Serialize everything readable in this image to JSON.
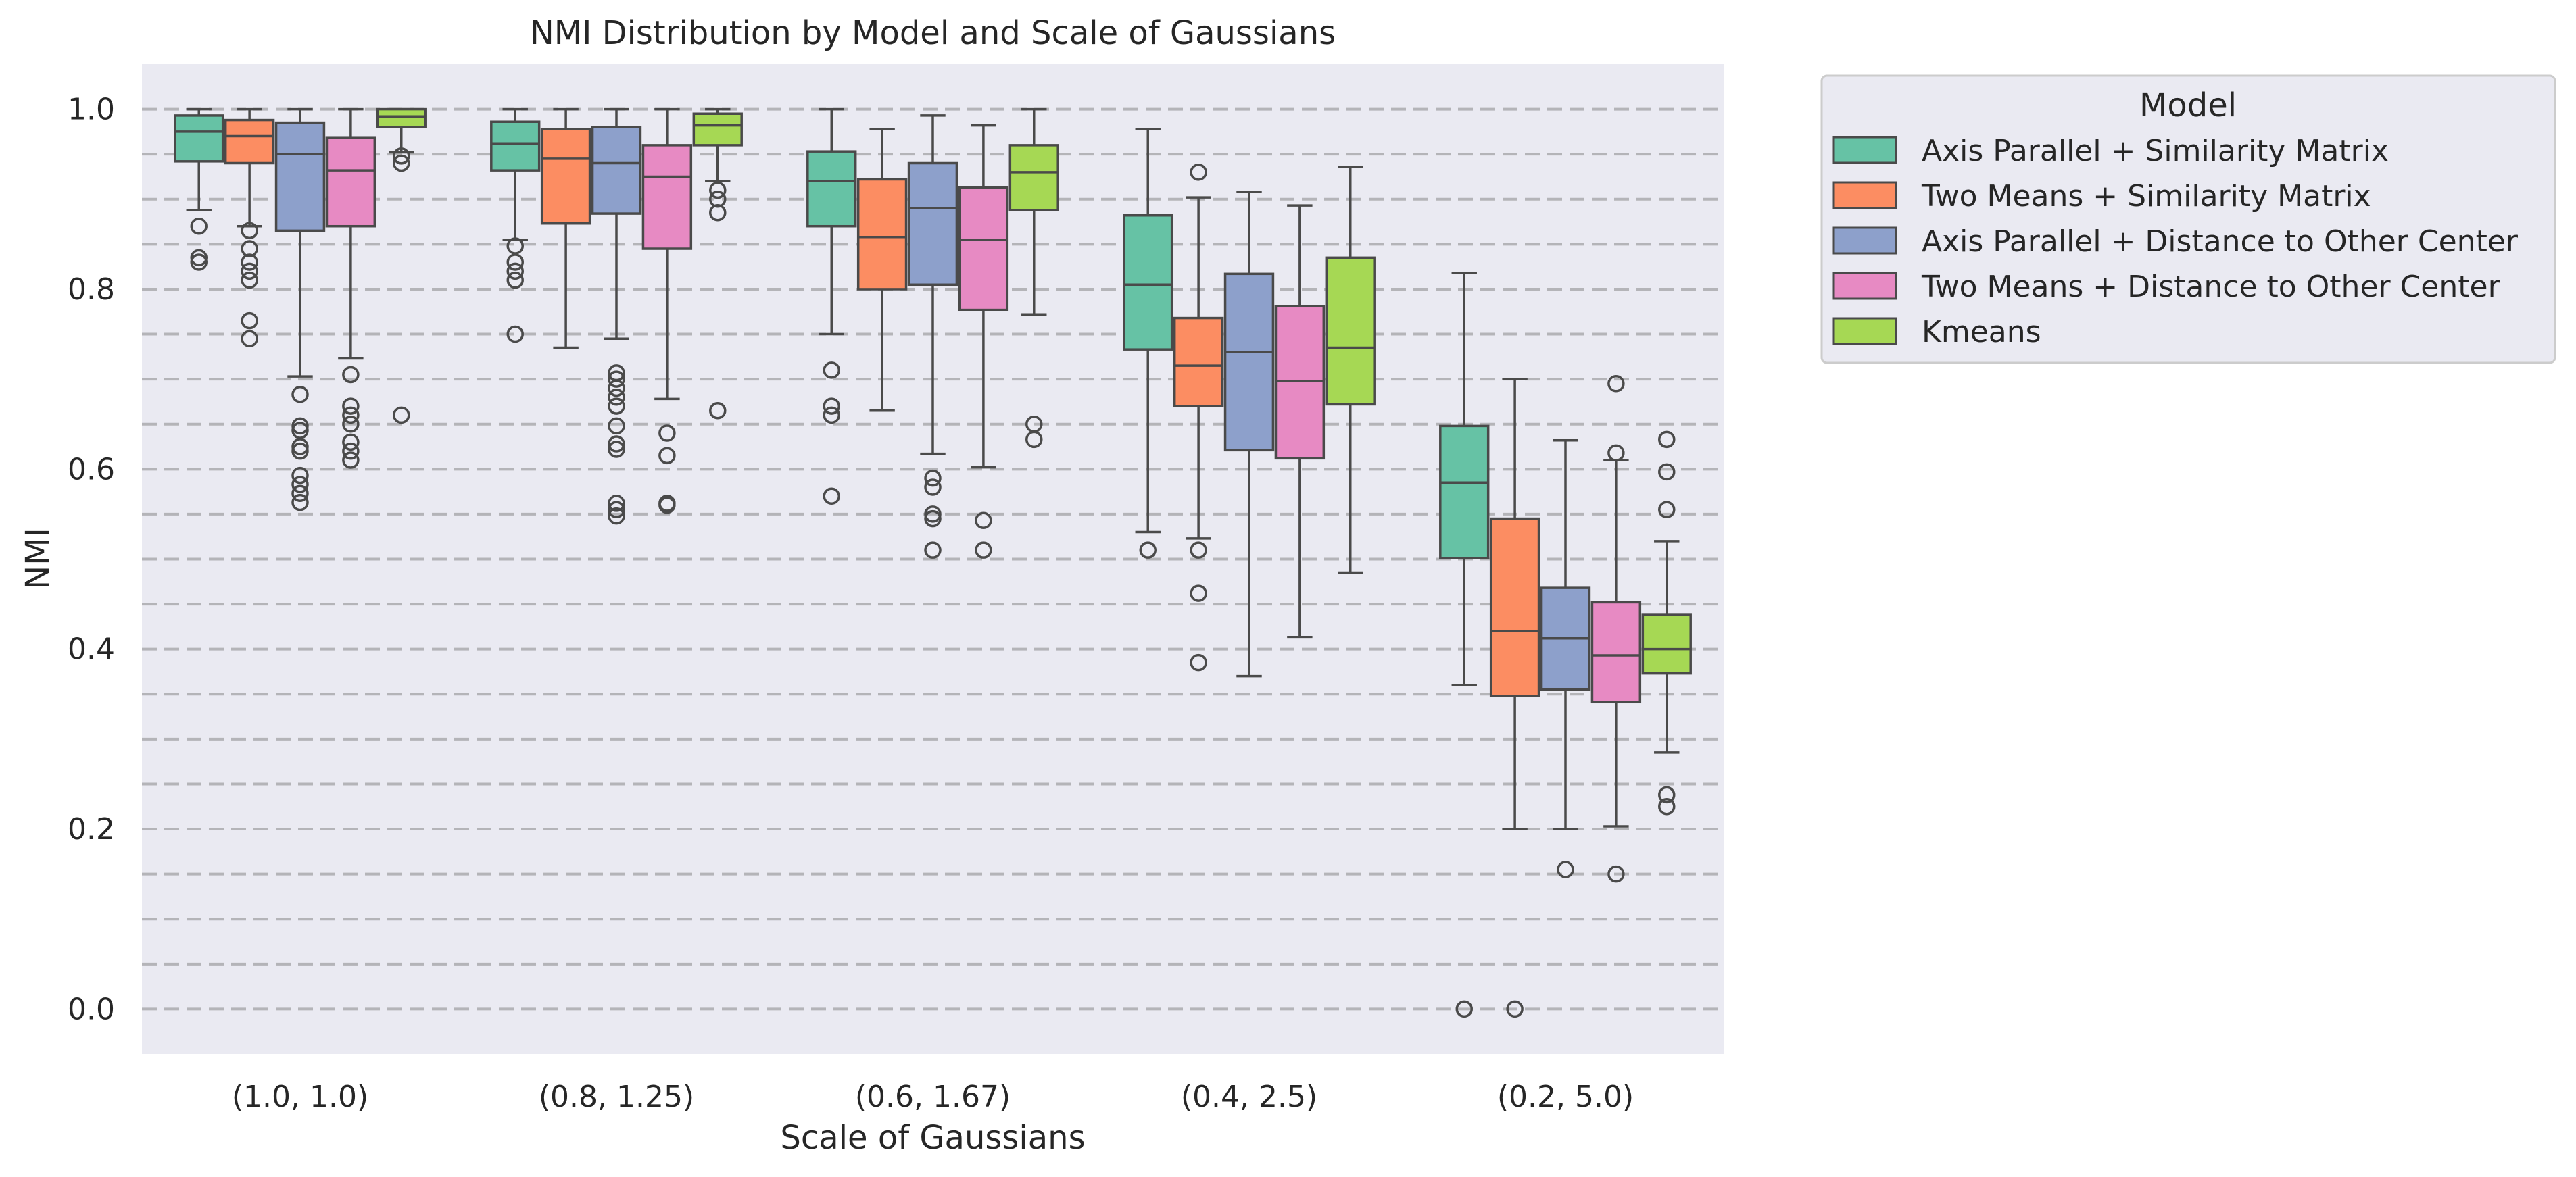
{
  "chart_data": {
    "type": "boxplot",
    "title": "NMI Distribution by Model and Scale of Gaussians",
    "xlabel": "Scale of Gaussians",
    "ylabel": "NMI",
    "ylim": [
      -0.05,
      1.05
    ],
    "yticks": [
      0.0,
      0.2,
      0.4,
      0.6,
      0.8,
      1.0
    ],
    "ytick_labels": [
      "0.0",
      "0.2",
      "0.4",
      "0.6",
      "0.8",
      "1.0"
    ],
    "hlines": [
      0.0,
      0.05,
      0.1,
      0.15,
      0.2,
      0.25,
      0.3,
      0.35,
      0.4,
      0.45,
      0.5,
      0.55,
      0.6,
      0.65,
      0.7,
      0.75,
      0.8,
      0.85,
      0.9,
      0.95,
      1.0
    ],
    "grid": "dashed horizontal lines",
    "legend": {
      "title": "Model",
      "placement": "outside top-right"
    },
    "categories": [
      "(1.0, 1.0)",
      "(0.8, 1.25)",
      "(0.6, 1.67)",
      "(0.4, 2.5)",
      "(0.2, 5.0)"
    ],
    "series": [
      {
        "name": "Axis Parallel + Similarity Matrix",
        "color": "#66c2a5",
        "boxes": [
          {
            "q1": 0.942,
            "median": 0.975,
            "q3": 0.993,
            "whisker_low": 0.888,
            "whisker_high": 1.0,
            "outliers": [
              0.87,
              0.835,
              0.83
            ]
          },
          {
            "q1": 0.932,
            "median": 0.962,
            "q3": 0.986,
            "whisker_low": 0.855,
            "whisker_high": 1.0,
            "outliers": [
              0.848,
              0.83,
              0.82,
              0.81,
              0.75
            ]
          },
          {
            "q1": 0.87,
            "median": 0.92,
            "q3": 0.953,
            "whisker_low": 0.75,
            "whisker_high": 1.0,
            "outliers": [
              0.71,
              0.67,
              0.66,
              0.57
            ]
          },
          {
            "q1": 0.733,
            "median": 0.805,
            "q3": 0.882,
            "whisker_low": 0.53,
            "whisker_high": 0.978,
            "outliers": [
              0.51
            ]
          },
          {
            "q1": 0.501,
            "median": 0.585,
            "q3": 0.648,
            "whisker_low": 0.36,
            "whisker_high": 0.818,
            "outliers": [
              0.0
            ]
          }
        ]
      },
      {
        "name": "Two Means + Similarity Matrix",
        "color": "#fc8d62",
        "boxes": [
          {
            "q1": 0.94,
            "median": 0.97,
            "q3": 0.988,
            "whisker_low": 0.87,
            "whisker_high": 1.0,
            "outliers": [
              0.865,
              0.845,
              0.83,
              0.82,
              0.81,
              0.765,
              0.745
            ]
          },
          {
            "q1": 0.873,
            "median": 0.945,
            "q3": 0.978,
            "whisker_low": 0.735,
            "whisker_high": 1.0,
            "outliers": []
          },
          {
            "q1": 0.8,
            "median": 0.858,
            "q3": 0.922,
            "whisker_low": 0.665,
            "whisker_high": 0.978,
            "outliers": []
          },
          {
            "q1": 0.67,
            "median": 0.715,
            "q3": 0.768,
            "whisker_low": 0.523,
            "whisker_high": 0.902,
            "outliers": [
              0.93,
              0.51,
              0.462,
              0.385
            ]
          },
          {
            "q1": 0.348,
            "median": 0.42,
            "q3": 0.545,
            "whisker_low": 0.2,
            "whisker_high": 0.7,
            "outliers": [
              0.0
            ]
          }
        ]
      },
      {
        "name": "Axis Parallel + Distance to Other Center",
        "color": "#8da0cb",
        "boxes": [
          {
            "q1": 0.865,
            "median": 0.95,
            "q3": 0.985,
            "whisker_low": 0.703,
            "whisker_high": 1.0,
            "outliers": [
              0.683,
              0.648,
              0.643,
              0.625,
              0.62,
              0.593,
              0.583,
              0.573,
              0.563
            ]
          },
          {
            "q1": 0.884,
            "median": 0.94,
            "q3": 0.98,
            "whisker_low": 0.745,
            "whisker_high": 1.0,
            "outliers": [
              0.707,
              0.7,
              0.69,
              0.68,
              0.67,
              0.648,
              0.628,
              0.622,
              0.562,
              0.555,
              0.548
            ]
          },
          {
            "q1": 0.805,
            "median": 0.89,
            "q3": 0.94,
            "whisker_low": 0.617,
            "whisker_high": 0.993,
            "outliers": [
              0.59,
              0.58,
              0.55,
              0.545,
              0.51
            ]
          },
          {
            "q1": 0.621,
            "median": 0.73,
            "q3": 0.817,
            "whisker_low": 0.37,
            "whisker_high": 0.908,
            "outliers": []
          },
          {
            "q1": 0.355,
            "median": 0.412,
            "q3": 0.468,
            "whisker_low": 0.2,
            "whisker_high": 0.632,
            "outliers": [
              0.155
            ]
          }
        ]
      },
      {
        "name": "Two Means + Distance to Other Center",
        "color": "#e78ac3",
        "boxes": [
          {
            "q1": 0.87,
            "median": 0.932,
            "q3": 0.968,
            "whisker_low": 0.723,
            "whisker_high": 1.0,
            "outliers": [
              0.705,
              0.67,
              0.66,
              0.65,
              0.63,
              0.62,
              0.61
            ]
          },
          {
            "q1": 0.845,
            "median": 0.925,
            "q3": 0.96,
            "whisker_low": 0.678,
            "whisker_high": 1.0,
            "outliers": [
              0.64,
              0.615,
              0.562,
              0.56
            ]
          },
          {
            "q1": 0.777,
            "median": 0.855,
            "q3": 0.913,
            "whisker_low": 0.602,
            "whisker_high": 0.982,
            "outliers": [
              0.543,
              0.51
            ]
          },
          {
            "q1": 0.612,
            "median": 0.698,
            "q3": 0.781,
            "whisker_low": 0.413,
            "whisker_high": 0.893,
            "outliers": []
          },
          {
            "q1": 0.341,
            "median": 0.393,
            "q3": 0.452,
            "whisker_low": 0.203,
            "whisker_high": 0.61,
            "outliers": [
              0.695,
              0.618,
              0.15
            ]
          }
        ]
      },
      {
        "name": "Kmeans",
        "color": "#a6d854",
        "boxes": [
          {
            "q1": 0.98,
            "median": 0.992,
            "q3": 1.0,
            "whisker_low": 0.952,
            "whisker_high": 1.0,
            "outliers": [
              0.948,
              0.94,
              0.66
            ]
          },
          {
            "q1": 0.96,
            "median": 0.982,
            "q3": 0.995,
            "whisker_low": 0.92,
            "whisker_high": 1.0,
            "outliers": [
              0.91,
              0.9,
              0.885,
              0.665
            ]
          },
          {
            "q1": 0.888,
            "median": 0.93,
            "q3": 0.96,
            "whisker_low": 0.772,
            "whisker_high": 1.0,
            "outliers": [
              0.65,
              0.633
            ]
          },
          {
            "q1": 0.672,
            "median": 0.735,
            "q3": 0.835,
            "whisker_low": 0.485,
            "whisker_high": 0.936,
            "outliers": []
          },
          {
            "q1": 0.373,
            "median": 0.4,
            "q3": 0.438,
            "whisker_low": 0.285,
            "whisker_high": 0.52,
            "outliers": [
              0.633,
              0.597,
              0.555,
              0.238,
              0.225
            ]
          }
        ]
      }
    ]
  }
}
